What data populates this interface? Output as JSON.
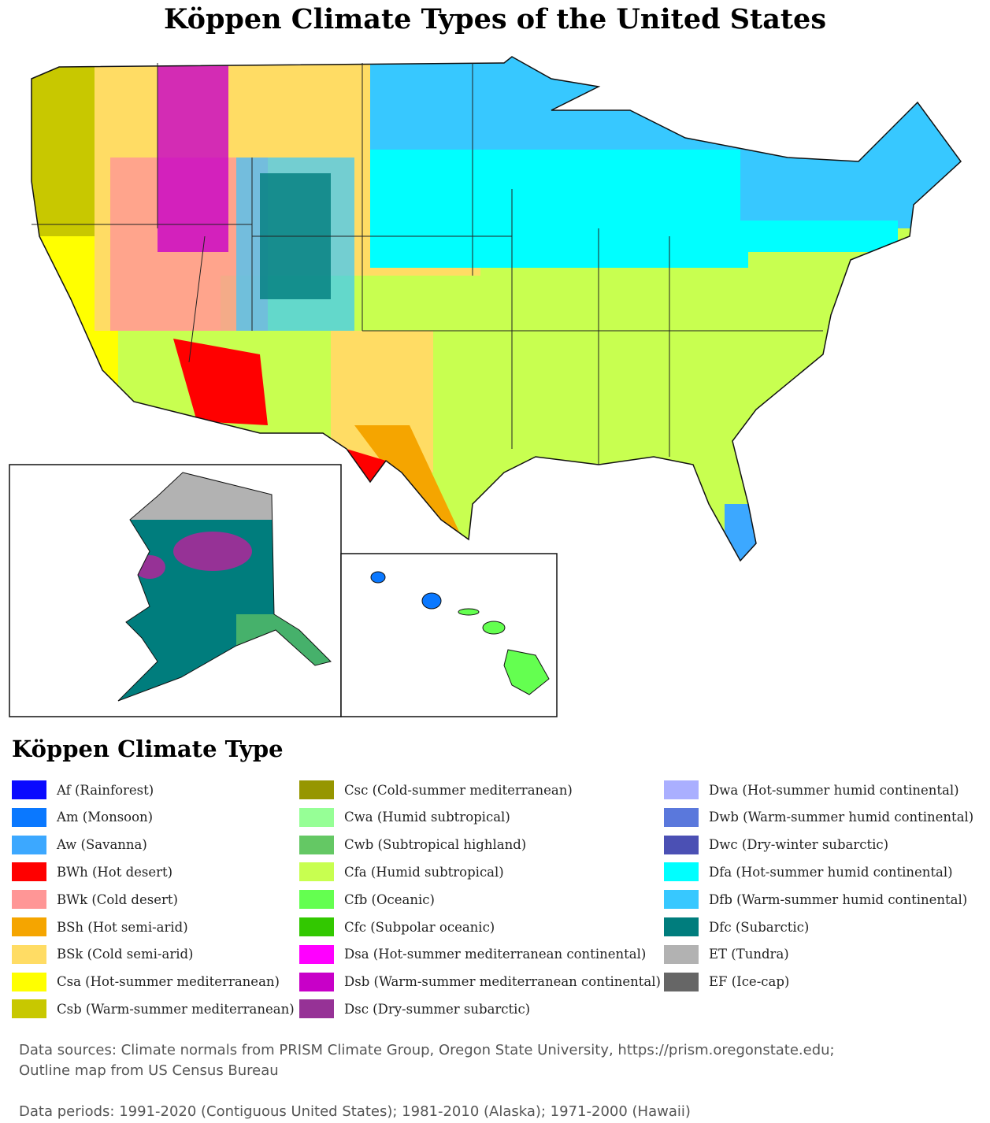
{
  "title": "Köppen Climate Types of the United States",
  "legend": {
    "title": "Köppen Climate Type",
    "items": [
      {
        "label": "Af (Rainforest)",
        "color": "#0a0aff"
      },
      {
        "label": "Am (Monsoon)",
        "color": "#0a78ff"
      },
      {
        "label": "Aw (Savanna)",
        "color": "#3ca8ff"
      },
      {
        "label": "BWh (Hot desert)",
        "color": "#ff0000"
      },
      {
        "label": "BWk (Cold desert)",
        "color": "#ff9696"
      },
      {
        "label": "BSh (Hot semi-arid)",
        "color": "#f5a500"
      },
      {
        "label": "BSk (Cold semi-arid)",
        "color": "#ffdc64"
      },
      {
        "label": "Csa (Hot-summer mediterranean)",
        "color": "#ffff00"
      },
      {
        "label": "Csb (Warm-summer mediterranean)",
        "color": "#c8c800"
      },
      {
        "label": "Csc (Cold-summer mediterranean)",
        "color": "#969600"
      },
      {
        "label": "Cwa (Humid subtropical)",
        "color": "#96ff96"
      },
      {
        "label": "Cwb (Subtropical highland)",
        "color": "#64c864"
      },
      {
        "label": "Cfa (Humid subtropical)",
        "color": "#c8ff50"
      },
      {
        "label": "Cfb (Oceanic)",
        "color": "#64ff50"
      },
      {
        "label": "Cfc (Subpolar oceanic)",
        "color": "#32c800"
      },
      {
        "label": "Dsa (Hot-summer mediterranean continental)",
        "color": "#ff00ff"
      },
      {
        "label": "Dsb (Warm-summer mediterranean continental)",
        "color": "#c800c8"
      },
      {
        "label": "Dsc (Dry-summer subarctic)",
        "color": "#963296"
      },
      {
        "label": "Dwa (Hot-summer humid continental)",
        "color": "#aaafff"
      },
      {
        "label": "Dwb (Warm-summer humid continental)",
        "color": "#5a78dc"
      },
      {
        "label": "Dwc (Dry-winter subarctic)",
        "color": "#4b50b4"
      },
      {
        "label": "Dfa (Hot-summer humid continental)",
        "color": "#00ffff"
      },
      {
        "label": "Dfb (Warm-summer humid continental)",
        "color": "#37c8ff"
      },
      {
        "label": "Dfc (Subarctic)",
        "color": "#007d7d"
      },
      {
        "label": "ET (Tundra)",
        "color": "#b2b2b2"
      },
      {
        "label": "EF (Ice-cap)",
        "color": "#666666"
      }
    ]
  },
  "notes": [
    "Data sources: Climate normals from PRISM Climate Group, Oregon State University, https://prism.oregonstate.edu;",
    "Outline map from US Census Bureau",
    "Data periods: 1991-2020 (Contiguous United States); 1981-2010 (Alaska); 1971-2000 (Hawaii)"
  ]
}
